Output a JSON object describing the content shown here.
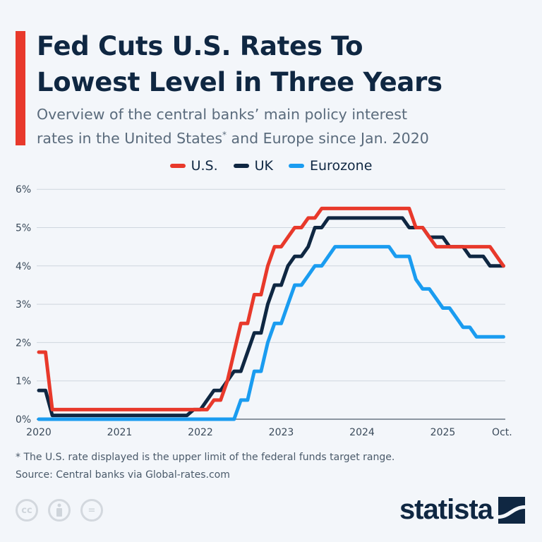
{
  "header": {
    "title_line1": "Fed Cuts U.S. Rates To",
    "title_line2": "Lowest Level in Three Years",
    "subtitle_line1": "Overview of the central banks’ main policy interest",
    "subtitle_line2a": "rates in the United States",
    "subtitle_sup": "*",
    "subtitle_line2b": " and Europe since Jan. 2020"
  },
  "footer": {
    "note": "* The U.S. rate displayed is the upper limit of the federal funds target range.",
    "source": "Source: Central banks via Global-rates.com",
    "cc_icons": [
      "cc-icon",
      "person-icon",
      "equals-icon"
    ],
    "logo": "statista"
  },
  "chart_data": {
    "type": "line",
    "step": true,
    "title": "",
    "xlabel": "",
    "ylabel": "",
    "ylim": [
      0,
      6
    ],
    "yticks": [
      "0%",
      "1%",
      "2%",
      "3%",
      "4%",
      "5%",
      "6%"
    ],
    "xticks": [
      "2020",
      "2021",
      "2022",
      "2023",
      "2024",
      "2025",
      "Oct."
    ],
    "xrange": [
      "2020-01",
      "2025-10"
    ],
    "grid": true,
    "legend_position": "top",
    "series": [
      {
        "name": "U.S.",
        "color": "#e8392b",
        "changes": [
          [
            "2020-01",
            1.75
          ],
          [
            "2020-03",
            0.25
          ],
          [
            "2022-03",
            0.5
          ],
          [
            "2022-05",
            1.0
          ],
          [
            "2022-06",
            1.75
          ],
          [
            "2022-07",
            2.5
          ],
          [
            "2022-09",
            3.25
          ],
          [
            "2022-11",
            4.0
          ],
          [
            "2022-12",
            4.5
          ],
          [
            "2023-02",
            4.75
          ],
          [
            "2023-03",
            5.0
          ],
          [
            "2023-05",
            5.25
          ],
          [
            "2023-07",
            5.5
          ],
          [
            "2024-09",
            5.0
          ],
          [
            "2024-11",
            4.75
          ],
          [
            "2024-12",
            4.5
          ],
          [
            "2025-09",
            4.25
          ],
          [
            "2025-10",
            4.0
          ]
        ]
      },
      {
        "name": "UK",
        "color": "#0f2742",
        "changes": [
          [
            "2020-01",
            0.75
          ],
          [
            "2020-03",
            0.1
          ],
          [
            "2021-12",
            0.25
          ],
          [
            "2022-02",
            0.5
          ],
          [
            "2022-03",
            0.75
          ],
          [
            "2022-05",
            1.0
          ],
          [
            "2022-06",
            1.25
          ],
          [
            "2022-08",
            1.75
          ],
          [
            "2022-09",
            2.25
          ],
          [
            "2022-11",
            3.0
          ],
          [
            "2022-12",
            3.5
          ],
          [
            "2023-02",
            4.0
          ],
          [
            "2023-03",
            4.25
          ],
          [
            "2023-05",
            4.5
          ],
          [
            "2023-06",
            5.0
          ],
          [
            "2023-08",
            5.25
          ],
          [
            "2024-08",
            5.0
          ],
          [
            "2024-11",
            4.75
          ],
          [
            "2025-02",
            4.5
          ],
          [
            "2025-05",
            4.25
          ],
          [
            "2025-08",
            4.0
          ]
        ]
      },
      {
        "name": "Eurozone",
        "color": "#1a9cf0",
        "changes": [
          [
            "2020-01",
            0.0
          ],
          [
            "2022-07",
            0.5
          ],
          [
            "2022-09",
            1.25
          ],
          [
            "2022-11",
            2.0
          ],
          [
            "2022-12",
            2.5
          ],
          [
            "2023-02",
            3.0
          ],
          [
            "2023-03",
            3.5
          ],
          [
            "2023-05",
            3.75
          ],
          [
            "2023-06",
            4.0
          ],
          [
            "2023-08",
            4.25
          ],
          [
            "2023-09",
            4.5
          ],
          [
            "2024-06",
            4.25
          ],
          [
            "2024-09",
            3.65
          ],
          [
            "2024-10",
            3.4
          ],
          [
            "2024-12",
            3.15
          ],
          [
            "2025-01",
            2.9
          ],
          [
            "2025-03",
            2.65
          ],
          [
            "2025-04",
            2.4
          ],
          [
            "2025-06",
            2.15
          ]
        ]
      }
    ]
  }
}
